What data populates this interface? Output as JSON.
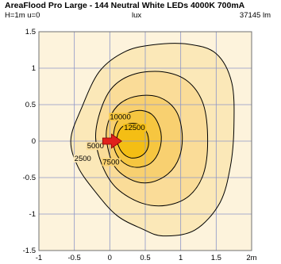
{
  "header": {
    "title": "AreaFlood Pro Large - 144 Neutral White LEDs 4000K 700mA",
    "left": "H=1m u=0",
    "center": "lux",
    "right": "37145 lm"
  },
  "colors": {
    "background": "#fdf3dc",
    "grid": "#8c96c8",
    "frame": "#707070",
    "arrow": "#e0201c",
    "levels": [
      "#fbe8b8",
      "#fadc98",
      "#f8d070",
      "#f6c640",
      "#f4be14"
    ]
  },
  "chart_data": {
    "type": "isolux-contour",
    "title": "AreaFlood Pro Large - 144 Neutral White LEDs 4000K 700mA",
    "unit": "lux",
    "xlim": [
      -1,
      2
    ],
    "ylim": [
      -1.5,
      1.5
    ],
    "x_ticks": [
      "-1",
      "-0.5",
      "0",
      "0.5",
      "1",
      "1.5",
      "2m"
    ],
    "y_ticks": [
      "1.5",
      "1",
      "0.5",
      "0",
      "-0.5",
      "-1",
      "-1.5"
    ],
    "grid": true,
    "contours": [
      {
        "level": 2500,
        "label": "2500",
        "points": [
          [
            -0.55,
            0.02
          ],
          [
            -0.4,
            0.45
          ],
          [
            -0.15,
            0.95
          ],
          [
            0.2,
            1.22
          ],
          [
            0.6,
            1.32
          ],
          [
            1.1,
            1.33
          ],
          [
            1.5,
            1.2
          ],
          [
            1.72,
            0.8
          ],
          [
            1.75,
            0.2
          ],
          [
            1.7,
            -0.35
          ],
          [
            1.55,
            -0.85
          ],
          [
            1.2,
            -1.22
          ],
          [
            0.75,
            -1.3
          ],
          [
            0.45,
            -1.2
          ],
          [
            0.1,
            -1.02
          ],
          [
            -0.2,
            -0.7
          ],
          [
            -0.45,
            -0.35
          ]
        ]
      },
      {
        "level": 5000,
        "label": "5000",
        "points": [
          [
            -0.2,
            0.05
          ],
          [
            -0.12,
            0.45
          ],
          [
            0.05,
            0.75
          ],
          [
            0.35,
            0.92
          ],
          [
            0.75,
            0.95
          ],
          [
            1.1,
            0.82
          ],
          [
            1.32,
            0.5
          ],
          [
            1.38,
            0.0
          ],
          [
            1.32,
            -0.45
          ],
          [
            1.12,
            -0.75
          ],
          [
            0.8,
            -0.88
          ],
          [
            0.45,
            -0.85
          ],
          [
            0.1,
            -0.65
          ],
          [
            -0.1,
            -0.35
          ]
        ]
      },
      {
        "level": 7500,
        "label": "7500",
        "points": [
          [
            -0.05,
            0.05
          ],
          [
            0.0,
            0.32
          ],
          [
            0.15,
            0.52
          ],
          [
            0.4,
            0.62
          ],
          [
            0.7,
            0.6
          ],
          [
            0.93,
            0.42
          ],
          [
            1.02,
            0.1
          ],
          [
            0.98,
            -0.22
          ],
          [
            0.82,
            -0.45
          ],
          [
            0.55,
            -0.57
          ],
          [
            0.28,
            -0.52
          ],
          [
            0.05,
            -0.32
          ]
        ]
      },
      {
        "level": 10000,
        "label": "10000",
        "points": [
          [
            0.05,
            0.05
          ],
          [
            0.1,
            0.26
          ],
          [
            0.25,
            0.38
          ],
          [
            0.45,
            0.42
          ],
          [
            0.62,
            0.34
          ],
          [
            0.72,
            0.12
          ],
          [
            0.7,
            -0.12
          ],
          [
            0.58,
            -0.3
          ],
          [
            0.38,
            -0.36
          ],
          [
            0.2,
            -0.3
          ],
          [
            0.08,
            -0.15
          ]
        ]
      },
      {
        "level": 12500,
        "label": "12500",
        "points": [
          [
            0.1,
            0.02
          ],
          [
            0.15,
            0.17
          ],
          [
            0.28,
            0.24
          ],
          [
            0.43,
            0.22
          ],
          [
            0.53,
            0.1
          ],
          [
            0.54,
            -0.08
          ],
          [
            0.45,
            -0.2
          ],
          [
            0.3,
            -0.23
          ],
          [
            0.17,
            -0.15
          ]
        ]
      }
    ],
    "luminaire_position": [
      0,
      0
    ]
  }
}
